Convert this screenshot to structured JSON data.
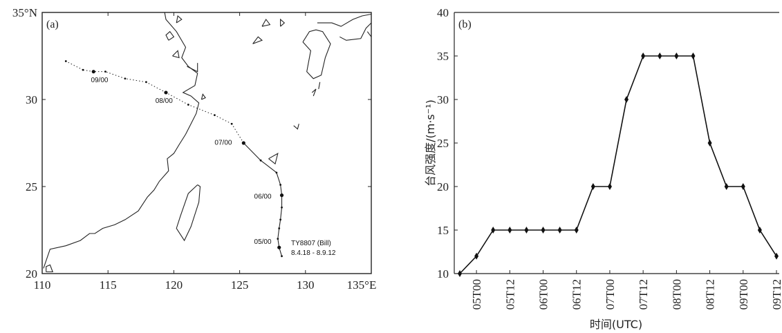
{
  "chart_data": [
    {
      "type": "map",
      "panel_label": "(a)",
      "x_ticks": [
        "110",
        "115",
        "120",
        "125",
        "130",
        "135°E"
      ],
      "x_tick_values": [
        110,
        115,
        120,
        125,
        130,
        135
      ],
      "y_ticks": [
        "20",
        "25",
        "30",
        "35°N"
      ],
      "y_tick_values": [
        20,
        25,
        30,
        35
      ],
      "xlim": [
        110,
        135
      ],
      "ylim": [
        20,
        35
      ],
      "storm_name": "TY8807 (Bill)",
      "storm_period": "8.4.18 - 8.9.12",
      "track": [
        {
          "lon": 128.2,
          "lat": 21.0,
          "m": "s"
        },
        {
          "lon": 128.0,
          "lat": 21.5,
          "m": "l"
        },
        {
          "lon": 127.9,
          "lat": 22.0,
          "m": "s"
        },
        {
          "lon": 128.0,
          "lat": 22.6,
          "m": "s"
        },
        {
          "lon": 128.1,
          "lat": 23.1,
          "m": "s"
        },
        {
          "lon": 128.2,
          "lat": 23.8,
          "m": "s"
        },
        {
          "lon": 128.2,
          "lat": 24.5,
          "m": "l"
        },
        {
          "lon": 128.1,
          "lat": 25.1,
          "m": "s"
        },
        {
          "lon": 127.8,
          "lat": 25.8,
          "m": "s"
        },
        {
          "lon": 126.6,
          "lat": 26.5,
          "m": "s"
        },
        {
          "lon": 125.3,
          "lat": 27.5,
          "m": "l"
        },
        {
          "lon": 124.4,
          "lat": 28.6,
          "m": "s"
        },
        {
          "lon": 123.1,
          "lat": 29.1,
          "m": "s"
        },
        {
          "lon": 121.1,
          "lat": 29.7,
          "m": "s"
        },
        {
          "lon": 119.4,
          "lat": 30.4,
          "m": "l"
        },
        {
          "lon": 117.9,
          "lat": 31.0,
          "m": "s"
        },
        {
          "lon": 116.3,
          "lat": 31.2,
          "m": "s"
        },
        {
          "lon": 114.8,
          "lat": 31.6,
          "m": "s"
        },
        {
          "lon": 113.9,
          "lat": 31.6,
          "m": "l"
        },
        {
          "lon": 113.1,
          "lat": 31.7,
          "m": "s"
        },
        {
          "lon": 111.8,
          "lat": 32.2,
          "m": "s"
        }
      ],
      "date_labels": [
        {
          "text": "05/00",
          "lon": 126.1,
          "lat": 21.7
        },
        {
          "text": "06/00",
          "lon": 126.1,
          "lat": 24.3
        },
        {
          "text": "07/00",
          "lon": 123.1,
          "lat": 27.4
        },
        {
          "text": "08/00",
          "lon": 118.6,
          "lat": 29.8
        },
        {
          "text": "09/00",
          "lon": 113.7,
          "lat": 31.0
        }
      ],
      "coastlines": [
        [
          [
            110.1,
            20.3
          ],
          [
            110.6,
            21.4
          ],
          [
            111.8,
            21.6
          ],
          [
            112.9,
            21.9
          ],
          [
            113.6,
            22.3
          ],
          [
            114.0,
            22.3
          ],
          [
            114.6,
            22.6
          ],
          [
            115.5,
            22.8
          ],
          [
            116.3,
            23.1
          ],
          [
            117.3,
            23.6
          ],
          [
            118.0,
            24.4
          ],
          [
            118.5,
            24.8
          ],
          [
            118.9,
            25.3
          ],
          [
            119.6,
            25.9
          ],
          [
            119.5,
            26.6
          ],
          [
            120.0,
            26.9
          ],
          [
            120.4,
            27.4
          ],
          [
            120.9,
            28.0
          ],
          [
            121.3,
            28.6
          ],
          [
            121.7,
            29.2
          ],
          [
            121.9,
            29.8
          ],
          [
            121.3,
            30.2
          ],
          [
            120.7,
            30.4
          ],
          [
            121.6,
            30.8
          ],
          [
            121.8,
            31.5
          ],
          [
            121.1,
            31.9
          ],
          [
            120.6,
            32.4
          ],
          [
            120.9,
            33.0
          ],
          [
            120.2,
            33.9
          ],
          [
            119.4,
            34.6
          ],
          [
            119.3,
            35.0
          ]
        ],
        [
          [
            121.8,
            25.1
          ],
          [
            121.1,
            24.6
          ],
          [
            120.5,
            23.3
          ],
          [
            120.2,
            22.6
          ],
          [
            120.8,
            21.9
          ],
          [
            121.3,
            22.7
          ],
          [
            121.9,
            24.1
          ],
          [
            122.0,
            25.0
          ],
          [
            121.8,
            25.1
          ]
        ],
        [
          [
            110.3,
            20.1
          ],
          [
            110.8,
            20.1
          ],
          [
            110.6,
            20.5
          ],
          [
            110.3,
            20.4
          ],
          [
            110.3,
            20.1
          ]
        ],
        [
          [
            119.6,
            33.4
          ],
          [
            120.0,
            33.6
          ],
          [
            119.7,
            33.9
          ],
          [
            119.4,
            33.7
          ],
          [
            119.6,
            33.4
          ]
        ],
        [
          [
            119.9,
            32.5
          ],
          [
            120.4,
            32.4
          ],
          [
            120.3,
            32.8
          ],
          [
            119.9,
            32.5
          ]
        ],
        [
          [
            120.2,
            34.4
          ],
          [
            120.6,
            34.6
          ],
          [
            120.3,
            34.8
          ],
          [
            120.2,
            34.4
          ]
        ],
        [
          [
            121.0,
            31.9
          ],
          [
            121.8,
            31.6
          ],
          [
            121.8,
            32.1
          ]
        ],
        [
          [
            122.1,
            30.0
          ],
          [
            122.4,
            30.1
          ],
          [
            122.2,
            30.3
          ],
          [
            122.1,
            30.0
          ]
        ],
        [
          [
            126.0,
            33.2
          ],
          [
            126.7,
            33.4
          ],
          [
            126.4,
            33.6
          ],
          [
            126.0,
            33.2
          ]
        ],
        [
          [
            126.7,
            34.2
          ],
          [
            127.3,
            34.3
          ],
          [
            127.0,
            34.6
          ],
          [
            126.7,
            34.2
          ]
        ],
        [
          [
            128.1,
            34.2
          ],
          [
            128.4,
            34.4
          ],
          [
            128.1,
            34.6
          ],
          [
            128.1,
            34.2
          ]
        ],
        [
          [
            127.2,
            26.6
          ],
          [
            127.9,
            26.9
          ],
          [
            127.7,
            26.3
          ],
          [
            127.2,
            26.6
          ]
        ],
        [
          [
            129.1,
            28.5
          ],
          [
            129.4,
            28.3
          ],
          [
            129.5,
            28.6
          ]
        ],
        [
          [
            129.8,
            33.3
          ],
          [
            130.4,
            32.8
          ],
          [
            130.1,
            31.6
          ],
          [
            130.6,
            31.2
          ],
          [
            131.2,
            31.4
          ],
          [
            131.5,
            32.4
          ],
          [
            131.9,
            33.2
          ],
          [
            131.3,
            33.9
          ],
          [
            130.8,
            34.0
          ],
          [
            130.3,
            33.9
          ],
          [
            129.8,
            33.3
          ]
        ],
        [
          [
            130.9,
            34.4
          ],
          [
            132.0,
            34.4
          ],
          [
            132.7,
            34.2
          ],
          [
            133.6,
            34.6
          ],
          [
            134.3,
            34.8
          ],
          [
            135.0,
            34.9
          ]
        ],
        [
          [
            132.6,
            33.6
          ],
          [
            133.1,
            33.4
          ],
          [
            134.2,
            33.5
          ],
          [
            134.6,
            34.1
          ],
          [
            135.0,
            34.4
          ]
        ],
        [
          [
            130.5,
            30.4
          ],
          [
            130.8,
            30.6
          ],
          [
            130.6,
            30.2
          ]
        ],
        [
          [
            131.0,
            30.6
          ],
          [
            131.1,
            31.0
          ]
        ],
        [
          [
            135.0,
            33.6
          ],
          [
            134.7,
            33.9
          ]
        ]
      ]
    },
    {
      "type": "line",
      "panel_label": "(b)",
      "ylabel": "台风强度/(m·s⁻¹)",
      "xlabel": "时间(UTC)",
      "ylim": [
        10,
        40
      ],
      "y_ticks": [
        10,
        15,
        20,
        25,
        30,
        35,
        40
      ],
      "x_ticks": [
        "05T00",
        "05T12",
        "06T00",
        "06T12",
        "07T00",
        "07T12",
        "08T00",
        "08T12",
        "09T00",
        "09T12"
      ],
      "x_tick_index": [
        1,
        3,
        5,
        7,
        9,
        11,
        13,
        15,
        17,
        19
      ],
      "x_index_range": [
        0,
        19
      ],
      "values": [
        10,
        12,
        15,
        15,
        15,
        15,
        15,
        15,
        20,
        20,
        30,
        35,
        35,
        35,
        35,
        25,
        20,
        20,
        15,
        12
      ]
    }
  ]
}
